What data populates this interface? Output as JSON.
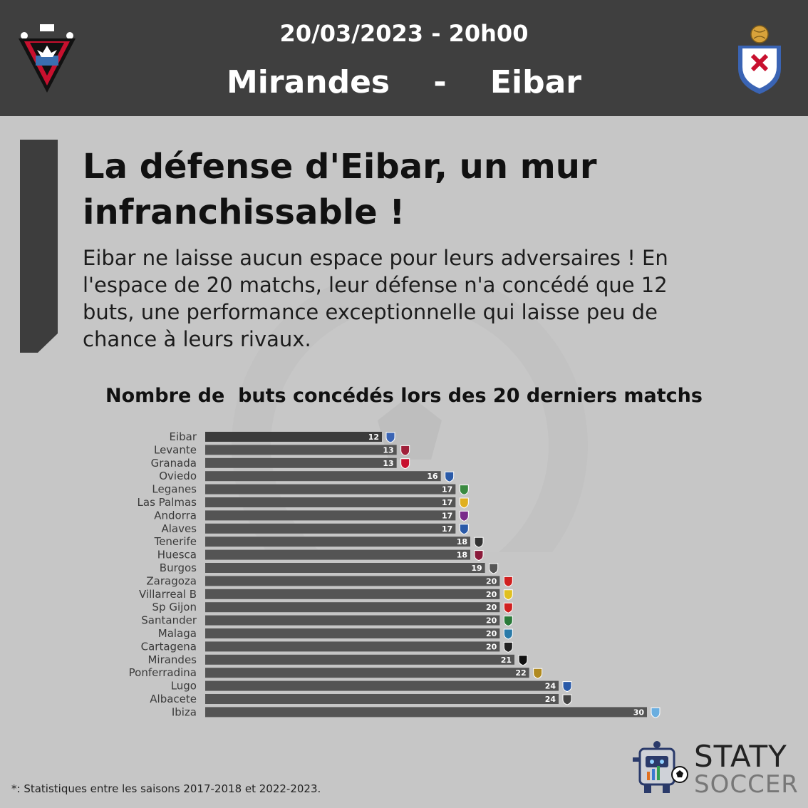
{
  "header": {
    "date_time": "20/03/2023 - 20h00",
    "teams": "Mirandes    -    Eibar",
    "home_logo_icon": "mirandes-crest-icon",
    "away_logo_icon": "eibar-crest-icon"
  },
  "article": {
    "headline": "La défense d'Eibar, un mur infranchissable !",
    "body": "Eibar ne laisse aucun espace pour leurs adversaires ! En l'espace de 20 matchs, leur défense n'a concédé que 12 buts, une performance exceptionnelle qui laisse peu de chance à leurs rivaux."
  },
  "chart_data": {
    "type": "bar",
    "orientation": "horizontal",
    "title": "Nombre de  buts concédés lors des 20 derniers matchs",
    "categories": [
      "Eibar",
      "Levante",
      "Granada",
      "Oviedo",
      "Leganes",
      "Las Palmas",
      "Andorra",
      "Alaves",
      "Tenerife",
      "Huesca",
      "Burgos",
      "Zaragoza",
      "Villarreal B",
      "Sp Gijon",
      "Santander",
      "Malaga",
      "Cartagena",
      "Mirandes",
      "Ponferradina",
      "Lugo",
      "Albacete",
      "Ibiza"
    ],
    "values": [
      12,
      13,
      13,
      16,
      17,
      17,
      17,
      17,
      18,
      18,
      19,
      20,
      20,
      20,
      20,
      20,
      20,
      21,
      22,
      24,
      24,
      30
    ],
    "xlim": [
      0,
      30
    ],
    "highlight": "Eibar",
    "colors": {
      "highlight": "#3b3b3b",
      "bar": "#545454",
      "value_text": "#ffffff"
    }
  },
  "footnote": "*: Statistiques entre les saisons 2017-2018 et 2022-2023.",
  "brand": {
    "line1": "STATY",
    "line2": "SOCCER",
    "icon": "robot-mascot-icon"
  }
}
